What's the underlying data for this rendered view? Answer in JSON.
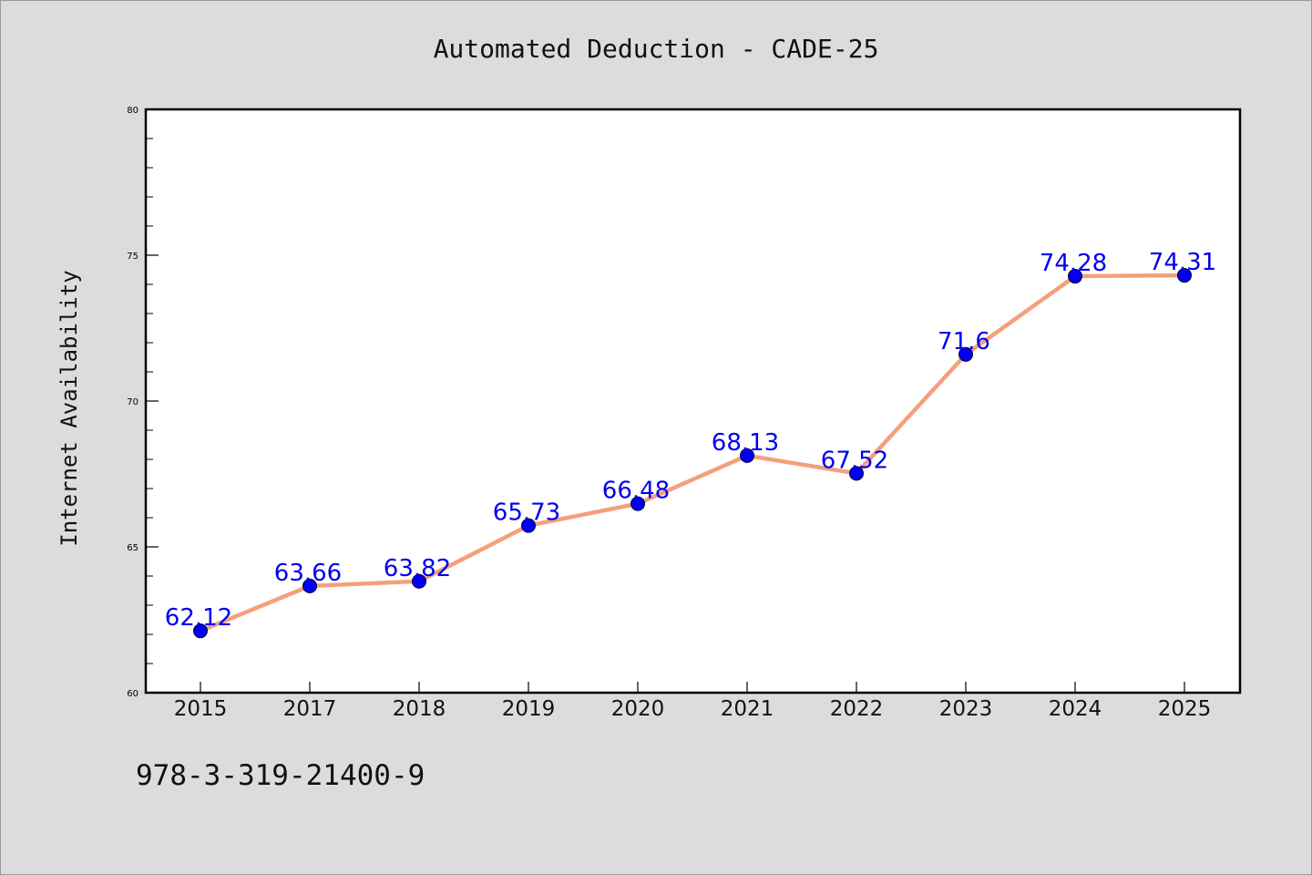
{
  "chart_data": {
    "type": "line",
    "title": "Automated Deduction - CADE-25",
    "xlabel": "",
    "ylabel": "Internet Availability",
    "categories": [
      "2015",
      "2017",
      "2018",
      "2019",
      "2020",
      "2021",
      "2022",
      "2023",
      "2024",
      "2025"
    ],
    "series": [
      {
        "values": [
          62.12,
          63.66,
          63.82,
          65.73,
          66.48,
          68.13,
          67.52,
          71.6,
          74.28,
          74.31
        ],
        "labels": [
          "62.12",
          "63.66",
          "63.82",
          "65.73",
          "66.48",
          "68.13",
          "67.52",
          "71.6",
          "74.28",
          "74.31"
        ],
        "line_color": "#f4a07c",
        "marker_color": "#0000ee",
        "label_color": "#0000ee"
      }
    ],
    "ylim": [
      60,
      80
    ],
    "yticks": [
      "60",
      "65",
      "70",
      "75",
      "80"
    ],
    "grid": false,
    "legend": "none"
  },
  "footnote": "978-3-319-21400-9"
}
